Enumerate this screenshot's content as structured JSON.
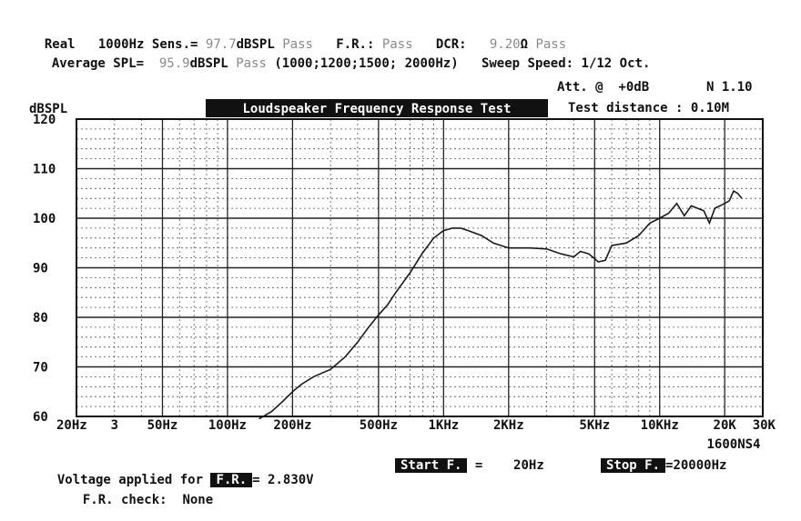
{
  "header": {
    "mode": "Real",
    "freq": "1000Hz",
    "sens_label": "Sens.=",
    "sens_value": "97.7",
    "sens_unit": "dBSPL",
    "sens_status": "Pass",
    "fr_label": "F.R.:",
    "fr_status": "Pass",
    "dcr_label": "DCR:",
    "dcr_value": "9.20",
    "dcr_unit": "Ω",
    "dcr_status": "Pass",
    "avg_label": "Average SPL=",
    "avg_value": "95.9",
    "avg_unit": "dBSPL",
    "avg_status": "Pass",
    "avg_freqs": "(1000;1200;1500; 2000Hz)",
    "sweep": "Sweep Speed: 1/12 Oct.",
    "att": "Att. @  +0dB",
    "version": "N 1.10",
    "test_distance": "Test distance : 0.10M"
  },
  "footer": {
    "voltage_label": "Voltage applied for",
    "fr_box": "F.R.",
    "voltage_value": "= 2.830V",
    "start_box": "Start F.",
    "start_eq": "=",
    "start_value": "20Hz",
    "stop_box": "Stop F.",
    "stop_value": "=20000Hz",
    "check_label": "F.R. check:",
    "check_value": "None"
  },
  "chart_data": {
    "type": "line",
    "title": "Loudspeaker Frequency Response Test",
    "ylabel": "dBSPL",
    "xscale": "log",
    "xlim": [
      20,
      30000
    ],
    "ylim": [
      60,
      120
    ],
    "y_ticks": [
      120,
      110,
      100,
      90,
      80,
      70,
      60
    ],
    "x_tick_labels": [
      {
        "f": 20,
        "label": "20Hz"
      },
      {
        "f": 30,
        "label": "3"
      },
      {
        "f": 50,
        "label": "50Hz"
      },
      {
        "f": 100,
        "label": "100Hz"
      },
      {
        "f": 200,
        "label": "200Hz"
      },
      {
        "f": 500,
        "label": "500Hz"
      },
      {
        "f": 1000,
        "label": "1KHz"
      },
      {
        "f": 2000,
        "label": "2KHz"
      },
      {
        "f": 5000,
        "label": "5KHz"
      },
      {
        "f": 10000,
        "label": "10KHz"
      },
      {
        "f": 20000,
        "label": "20K"
      },
      {
        "f": 30000,
        "label": "30K"
      }
    ],
    "annotation": "1600NS4",
    "grid": true,
    "series": [
      {
        "points": [
          [
            140,
            59.5
          ],
          [
            160,
            61
          ],
          [
            180,
            63
          ],
          [
            200,
            65
          ],
          [
            220,
            66.5
          ],
          [
            250,
            68
          ],
          [
            300,
            69.5
          ],
          [
            350,
            72
          ],
          [
            400,
            75
          ],
          [
            450,
            78
          ],
          [
            500,
            80.5
          ],
          [
            550,
            82.5
          ],
          [
            600,
            85
          ],
          [
            700,
            89
          ],
          [
            800,
            93
          ],
          [
            900,
            96
          ],
          [
            1000,
            97.5
          ],
          [
            1100,
            98
          ],
          [
            1200,
            98
          ],
          [
            1300,
            97.5
          ],
          [
            1500,
            96.5
          ],
          [
            1700,
            95
          ],
          [
            2000,
            94
          ],
          [
            2500,
            94
          ],
          [
            3000,
            93.8
          ],
          [
            3500,
            92.8
          ],
          [
            4000,
            92.2
          ],
          [
            4300,
            93.3
          ],
          [
            4700,
            92.8
          ],
          [
            5200,
            91.2
          ],
          [
            5600,
            91.5
          ],
          [
            6000,
            94.5
          ],
          [
            7000,
            95
          ],
          [
            8000,
            96.5
          ],
          [
            9000,
            99
          ],
          [
            10000,
            100
          ],
          [
            11000,
            101
          ],
          [
            12000,
            103
          ],
          [
            13000,
            100.5
          ],
          [
            14000,
            102.5
          ],
          [
            15000,
            102
          ],
          [
            16000,
            101.5
          ],
          [
            17000,
            99
          ],
          [
            18000,
            102
          ],
          [
            19000,
            102.5
          ],
          [
            21000,
            103.5
          ],
          [
            22000,
            105.5
          ],
          [
            23000,
            105
          ],
          [
            24000,
            104
          ]
        ]
      }
    ]
  }
}
